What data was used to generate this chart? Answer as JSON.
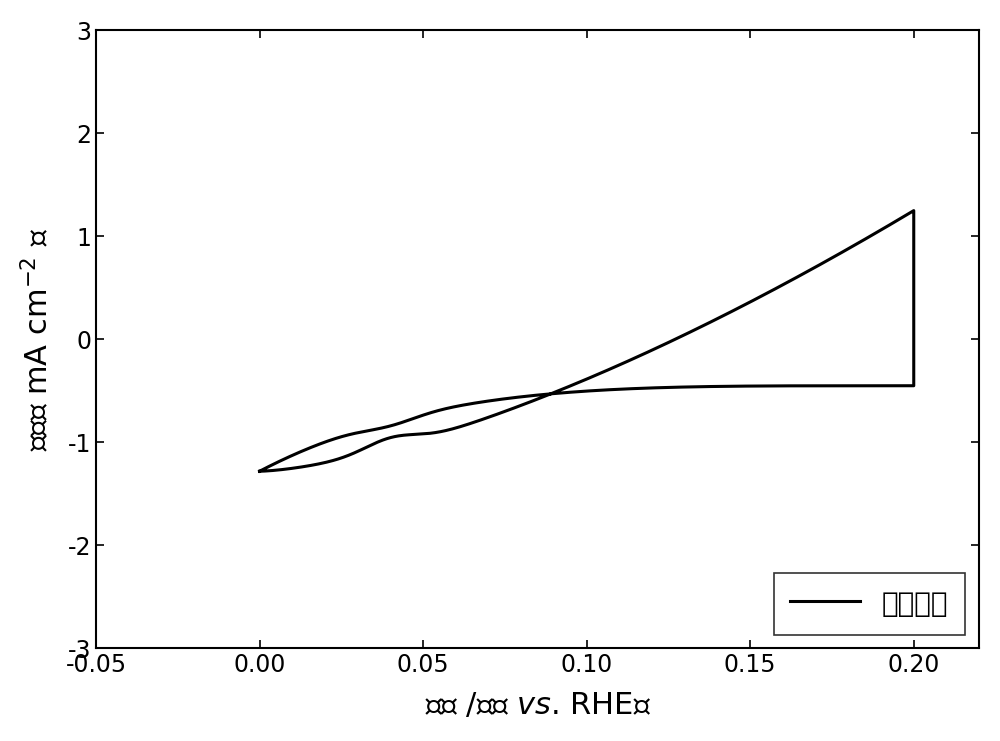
{
  "xlim": [
    -0.05,
    0.22
  ],
  "ylim": [
    -3,
    3
  ],
  "xticks": [
    -0.05,
    0.0,
    0.05,
    0.1,
    0.15,
    0.2
  ],
  "yticks": [
    -3,
    -2,
    -1,
    0,
    1,
    2,
    3
  ],
  "legend_label": "氮气饱和",
  "line_color": "#000000",
  "line_width": 2.2,
  "background_color": "#ffffff",
  "figsize": [
    10.0,
    7.41
  ],
  "dpi": 100,
  "ylabel": "电流（ mA cm⁻² ）",
  "xlabel": "电位 / （伏 vs. RHE）",
  "xlabel_italic": "vs.",
  "font_size_label": 22,
  "font_size_tick": 17,
  "font_size_legend": 20
}
